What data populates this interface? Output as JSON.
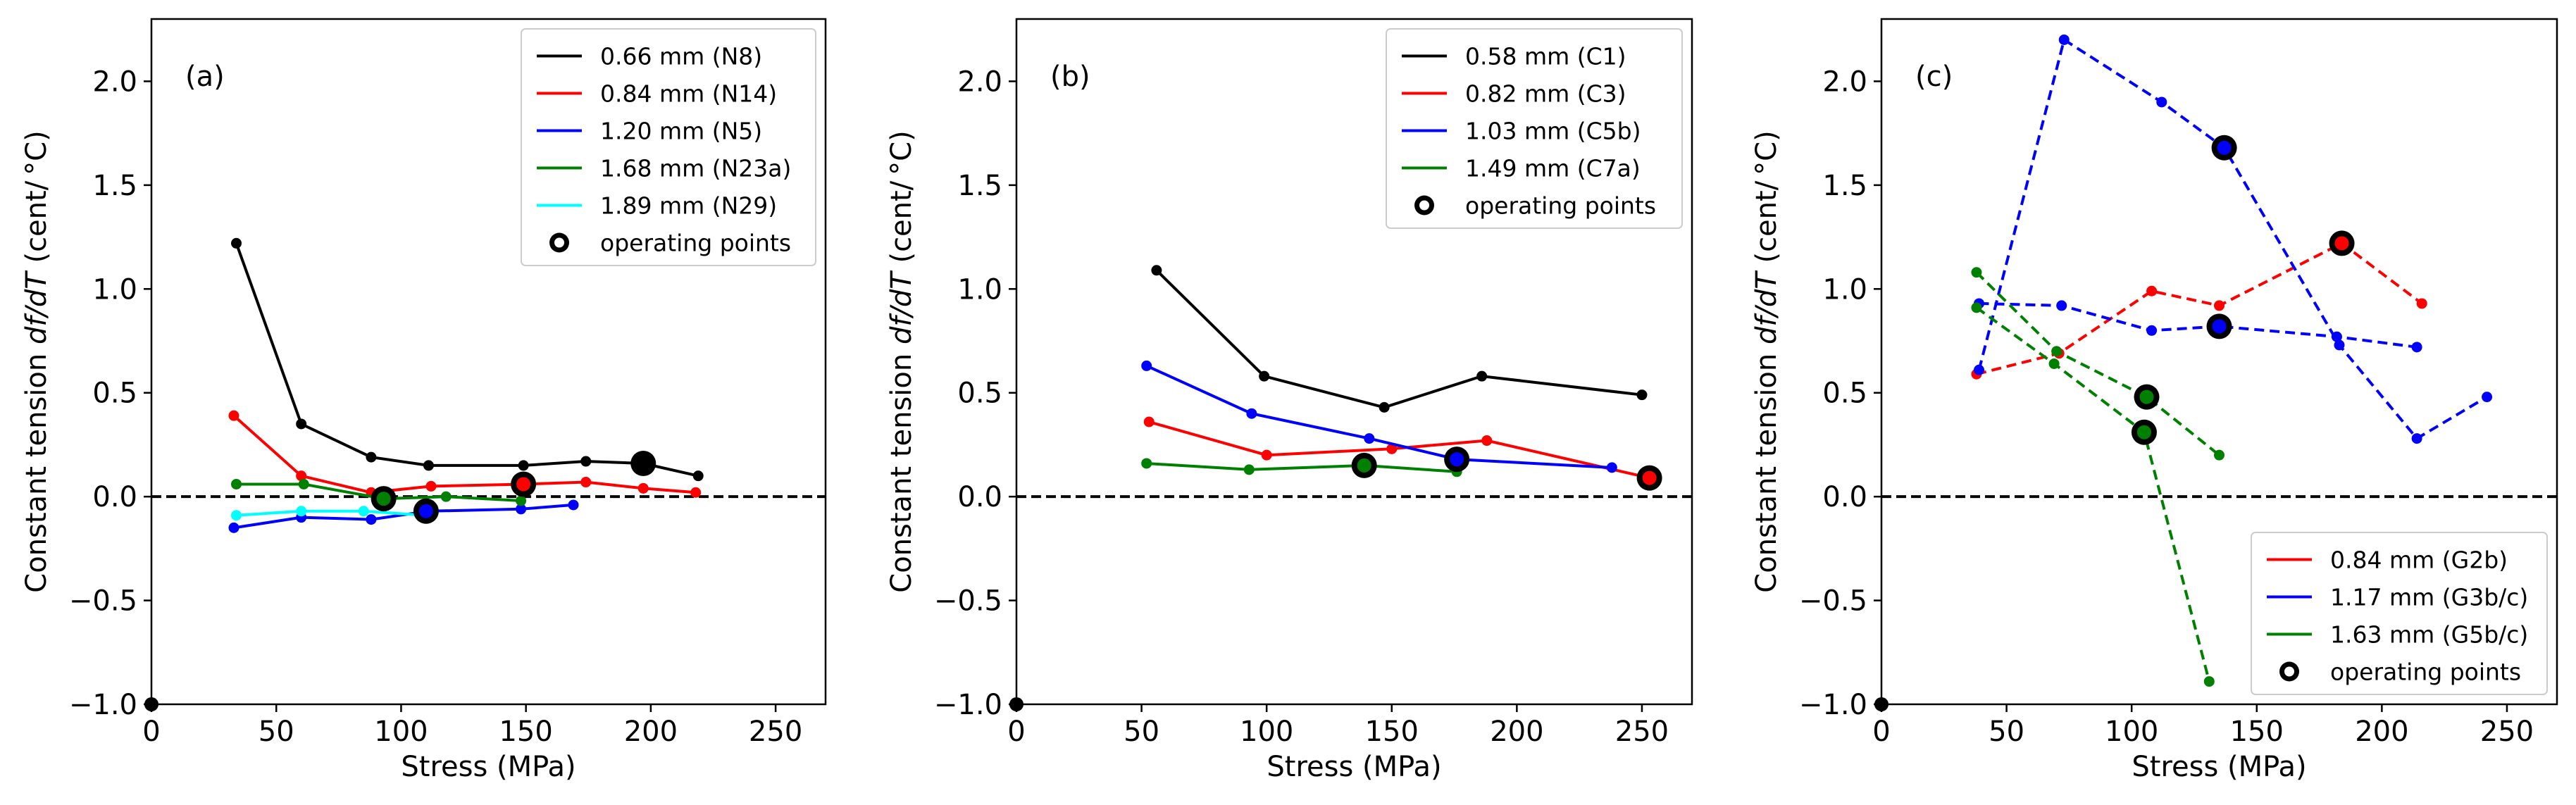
{
  "chart_data": [
    {
      "type": "line",
      "panel_label": "(a)",
      "xlabel": "Stress (MPa)",
      "ylabel_main": "Constant tension ",
      "ylabel_ital": "df/dT",
      "ylabel_unit": "  (cent/ °C)",
      "xlim": [
        0,
        270
      ],
      "ylim": [
        -1.0,
        2.3
      ],
      "xticks": [
        0,
        50,
        100,
        150,
        200,
        250
      ],
      "yticks": [
        -1.0,
        -0.5,
        0.0,
        0.5,
        1.0,
        1.5,
        2.0
      ],
      "reference_line_y": 0.0,
      "legend_position": "top-right",
      "operating_points_label": "operating points",
      "series": [
        {
          "name": "0.66 mm (N8)",
          "color": "#000000",
          "dashed": false,
          "x": [
            34,
            60,
            88,
            111,
            149,
            174,
            197,
            219
          ],
          "y": [
            1.22,
            0.35,
            0.19,
            0.15,
            0.15,
            0.17,
            0.16,
            0.1
          ],
          "op_x": [
            197
          ],
          "op_y": [
            0.16
          ]
        },
        {
          "name": "0.84 mm (N14)",
          "color": "#ff0000",
          "dashed": false,
          "x": [
            33,
            60,
            88,
            112,
            149,
            174,
            197,
            218
          ],
          "y": [
            0.39,
            0.1,
            0.02,
            0.05,
            0.06,
            0.07,
            0.04,
            0.02
          ],
          "op_x": [
            149
          ],
          "op_y": [
            0.06
          ]
        },
        {
          "name": "1.20 mm (N5)",
          "color": "#0000ff",
          "dashed": false,
          "x": [
            33,
            60,
            88,
            111,
            148,
            169
          ],
          "y": [
            -0.15,
            -0.1,
            -0.11,
            -0.07,
            -0.06,
            -0.04
          ],
          "op_x": [
            110
          ],
          "op_y": [
            -0.07
          ]
        },
        {
          "name": "1.68 mm (N23a)",
          "color": "#008000",
          "dashed": false,
          "x": [
            34,
            61,
            93,
            118,
            148
          ],
          "y": [
            0.06,
            0.06,
            -0.01,
            0.0,
            -0.02
          ],
          "op_x": [
            93
          ],
          "op_y": [
            -0.01
          ]
        },
        {
          "name": "1.89 mm (N29)",
          "color": "#00ffff",
          "dashed": false,
          "x": [
            34,
            60,
            85,
            110
          ],
          "y": [
            -0.09,
            -0.07,
            -0.07,
            -0.09
          ],
          "op_x": [],
          "op_y": []
        }
      ]
    },
    {
      "type": "line",
      "panel_label": "(b)",
      "xlabel": "Stress (MPa)",
      "ylabel_main": "Constant tension ",
      "ylabel_ital": "df/dT",
      "ylabel_unit": "  (cent/ °C)",
      "xlim": [
        0,
        270
      ],
      "ylim": [
        -1.0,
        2.3
      ],
      "xticks": [
        0,
        50,
        100,
        150,
        200,
        250
      ],
      "yticks": [
        -1.0,
        -0.5,
        0.0,
        0.5,
        1.0,
        1.5,
        2.0
      ],
      "reference_line_y": 0.0,
      "legend_position": "top-right",
      "operating_points_label": "operating points",
      "series": [
        {
          "name": "0.58 mm (C1)",
          "color": "#000000",
          "dashed": false,
          "x": [
            56,
            99,
            147,
            186,
            250
          ],
          "y": [
            1.09,
            0.58,
            0.43,
            0.58,
            0.49
          ],
          "op_x": [],
          "op_y": []
        },
        {
          "name": "0.82 mm (C3)",
          "color": "#ff0000",
          "dashed": false,
          "x": [
            53,
            100,
            150,
            188,
            253
          ],
          "y": [
            0.36,
            0.2,
            0.23,
            0.27,
            0.09
          ],
          "op_x": [
            253
          ],
          "op_y": [
            0.09
          ]
        },
        {
          "name": "1.03 mm (C5b)",
          "color": "#0000ff",
          "dashed": false,
          "x": [
            52,
            94,
            141,
            176,
            238
          ],
          "y": [
            0.63,
            0.4,
            0.28,
            0.18,
            0.14
          ],
          "op_x": [
            176
          ],
          "op_y": [
            0.18
          ]
        },
        {
          "name": "1.49 mm (C7a)",
          "color": "#008000",
          "dashed": false,
          "x": [
            52,
            93,
            139,
            176
          ],
          "y": [
            0.16,
            0.13,
            0.15,
            0.12
          ],
          "op_x": [
            139
          ],
          "op_y": [
            0.15
          ]
        }
      ]
    },
    {
      "type": "line",
      "panel_label": "(c)",
      "xlabel": "Stress (MPa)",
      "ylabel_main": "Constant tension ",
      "ylabel_ital": "df/dT",
      "ylabel_unit": "  (cent/ °C)",
      "xlim": [
        0,
        270
      ],
      "ylim": [
        -1.0,
        2.3
      ],
      "xticks": [
        0,
        50,
        100,
        150,
        200,
        250
      ],
      "yticks": [
        -1.0,
        -0.5,
        0.0,
        0.5,
        1.0,
        1.5,
        2.0
      ],
      "reference_line_y": 0.0,
      "legend_position": "bottom-right",
      "operating_points_label": "operating points",
      "series": [
        {
          "name": "0.84 mm (G2b)",
          "color": "#ff0000",
          "dashed": true,
          "x": [
            38,
            71,
            108,
            135,
            184,
            216
          ],
          "y": [
            0.59,
            0.69,
            0.99,
            0.92,
            1.22,
            0.93
          ],
          "op_x": [
            184
          ],
          "op_y": [
            1.22
          ]
        },
        {
          "name": "1.17 mm (G3b/c)",
          "color": "#0000ff",
          "dashed": true,
          "x": [
            39,
            73,
            112,
            137,
            183,
            214,
            242
          ],
          "y": [
            0.61,
            2.2,
            1.9,
            1.68,
            0.73,
            0.28,
            0.48
          ],
          "op_x": [
            137
          ],
          "op_y": [
            1.68
          ]
        },
        {
          "name": "",
          "color": "#0000ff",
          "dashed": true,
          "x": [
            39,
            72,
            108,
            135,
            182,
            214
          ],
          "y": [
            0.93,
            0.92,
            0.8,
            0.82,
            0.77,
            0.72
          ],
          "op_x": [
            135
          ],
          "op_y": [
            0.82
          ]
        },
        {
          "name": "1.63 mm (G5b/c)",
          "color": "#008000",
          "dashed": true,
          "x": [
            38,
            70,
            106,
            135
          ],
          "y": [
            1.08,
            0.7,
            0.48,
            0.2
          ],
          "op_x": [
            106
          ],
          "op_y": [
            0.48
          ]
        },
        {
          "name": "",
          "color": "#008000",
          "dashed": true,
          "x": [
            38,
            69,
            105,
            131
          ],
          "y": [
            0.91,
            0.64,
            0.31,
            -0.89
          ],
          "op_x": [
            105
          ],
          "op_y": [
            0.31
          ]
        }
      ]
    }
  ]
}
